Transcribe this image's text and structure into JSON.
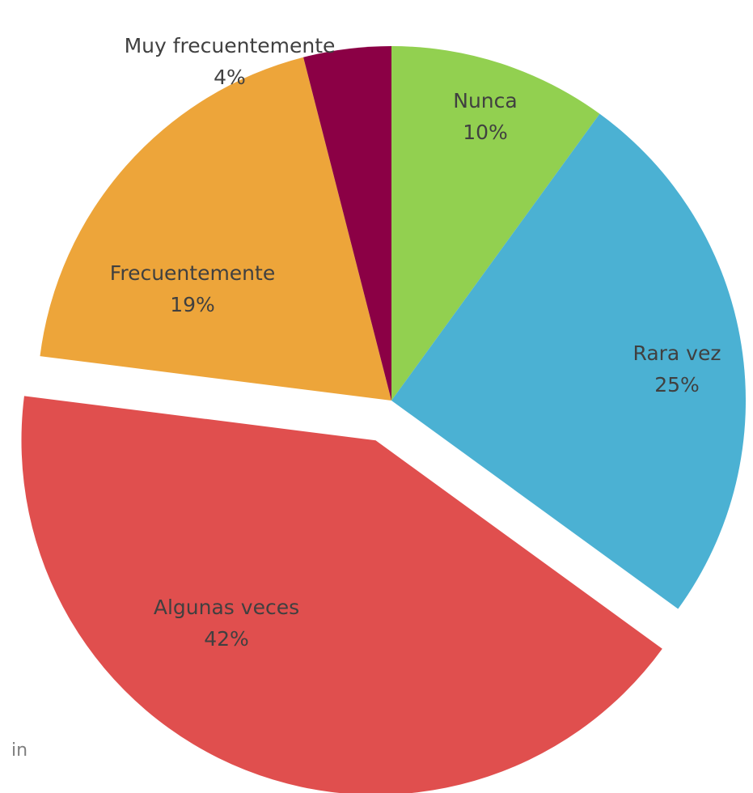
{
  "chart_data": {
    "type": "pie",
    "categories": [
      "Nunca",
      "Rara vez",
      "Algunas veces",
      "Frecuentemente",
      "Muy frecuentemente"
    ],
    "values": [
      10,
      25,
      42,
      19,
      4
    ],
    "value_labels": [
      "10%",
      "25%",
      "42%",
      "19%",
      "4%"
    ],
    "colors": [
      "#92d050",
      "#4bb1d3",
      "#e04f4e",
      "#eda53a",
      "#8b0045"
    ],
    "exploded": "Algunas veces",
    "annotations": [
      "in"
    ]
  }
}
